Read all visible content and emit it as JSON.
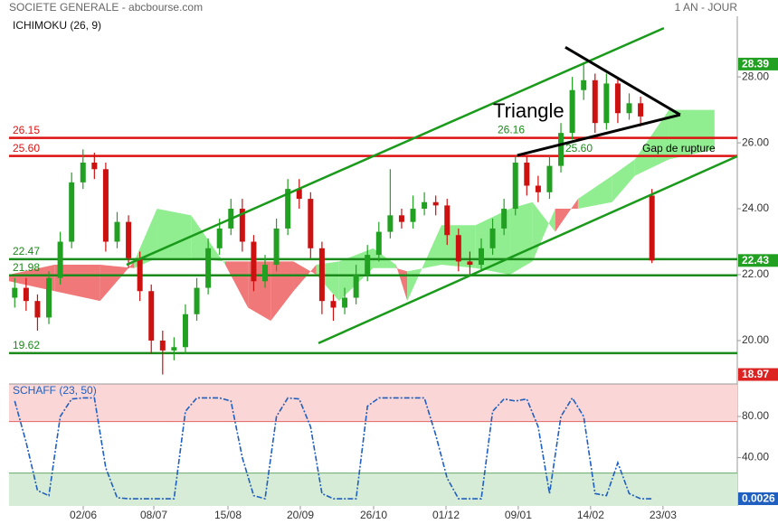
{
  "header": {
    "title": "SOCIETE GENERALE - abcbourse.com",
    "period": "1 AN - JOUR"
  },
  "chart_data": [
    {
      "type": "candlestick",
      "title": "ICHIMOKU (26, 9)",
      "xlim": [
        0,
        64
      ],
      "xticks": [
        {
          "value": 6.52,
          "label": "02/06"
        },
        {
          "value": 12.72,
          "label": "08/07"
        },
        {
          "value": 19.24,
          "label": "15/08"
        },
        {
          "value": 25.6,
          "label": "20/09"
        },
        {
          "value": 32.04,
          "label": "26/10"
        },
        {
          "value": 38.4,
          "label": "01/12"
        },
        {
          "value": 44.75,
          "label": "09/01"
        },
        {
          "value": 51.11,
          "label": "14/02"
        },
        {
          "value": 57.47,
          "label": "23/03"
        }
      ],
      "ylim": [
        18.82,
        29.84
      ],
      "yticks": [
        {
          "value": 20,
          "label": "20.00"
        },
        {
          "value": 22,
          "label": "22.00"
        },
        {
          "value": 24,
          "label": "24.00"
        },
        {
          "value": 26,
          "label": "26.00"
        },
        {
          "value": 28,
          "label": "28.00"
        }
      ],
      "up_color": "#22a022",
      "down_color": "#cc1111",
      "open": [
        21.3,
        21.6,
        21.2,
        20.7,
        21.9,
        23.0,
        24.8,
        25.4,
        25.2,
        23.0,
        23.6,
        22.5,
        21.5,
        20.0,
        19.7,
        19.8,
        20.8,
        21.6,
        22.8,
        23.4,
        24.0,
        23.0,
        21.8,
        22.3,
        23.4,
        24.6,
        24.3,
        22.8,
        21.2,
        21.0,
        21.3,
        22.0,
        22.6,
        23.3,
        23.8,
        23.6,
        24.0,
        24.2,
        24.1,
        23.2,
        22.4,
        22.3,
        22.8,
        23.4,
        24.0,
        25.4,
        24.7,
        24.5,
        25.3,
        26.3,
        27.6,
        27.9,
        26.6,
        27.8,
        26.9,
        27.2,
        24.4
      ],
      "high": [
        21.9,
        21.9,
        21.4,
        22.1,
        23.3,
        25.1,
        25.8,
        25.7,
        25.4,
        23.9,
        23.8,
        22.7,
        21.7,
        20.3,
        20.1,
        21.1,
        21.9,
        23.1,
        23.7,
        24.3,
        24.3,
        23.2,
        22.6,
        23.7,
        24.9,
        24.9,
        24.5,
        23.0,
        21.4,
        21.6,
        22.3,
        22.9,
        23.6,
        25.2,
        24.0,
        24.4,
        24.5,
        24.4,
        24.3,
        23.4,
        22.7,
        23.1,
        23.7,
        24.3,
        25.6,
        25.6,
        25.0,
        25.6,
        26.6,
        28.0,
        28.4,
        28.1,
        28.1,
        28.0,
        27.5,
        27.4,
        24.6
      ],
      "low": [
        21.0,
        20.9,
        20.3,
        20.5,
        21.7,
        22.8,
        24.6,
        24.9,
        22.7,
        22.8,
        22.2,
        21.2,
        19.6,
        18.97,
        19.4,
        19.6,
        20.6,
        21.4,
        22.6,
        23.2,
        22.7,
        21.5,
        21.6,
        22.1,
        23.2,
        24.0,
        22.5,
        20.8,
        20.6,
        20.8,
        21.1,
        21.8,
        22.4,
        23.1,
        23.4,
        23.4,
        23.8,
        23.8,
        22.9,
        22.1,
        22.0,
        22.1,
        22.6,
        23.2,
        23.8,
        24.4,
        24.2,
        24.3,
        25.1,
        26.1,
        27.3,
        26.3,
        26.4,
        26.6,
        26.7,
        26.5,
        22.35
      ],
      "close": [
        21.6,
        21.2,
        20.7,
        21.9,
        23.0,
        24.8,
        25.4,
        25.2,
        23.0,
        23.6,
        22.5,
        21.5,
        20.0,
        19.7,
        19.8,
        20.8,
        21.6,
        22.8,
        23.4,
        24.0,
        23.0,
        21.8,
        22.3,
        23.4,
        24.6,
        24.3,
        22.8,
        21.2,
        21.0,
        21.3,
        22.0,
        22.6,
        23.3,
        23.8,
        23.6,
        24.0,
        24.2,
        24.1,
        23.2,
        22.4,
        22.3,
        22.8,
        23.4,
        24.0,
        25.4,
        24.7,
        24.5,
        25.3,
        26.3,
        27.6,
        27.9,
        26.6,
        27.8,
        26.9,
        27.2,
        26.8,
        22.43
      ],
      "cloud": {
        "up_color": "#90ee90",
        "down_color": "#f07878",
        "x": [
          0,
          4,
          8,
          11,
          13,
          16,
          19,
          21,
          23,
          25,
          27,
          29,
          32,
          34,
          35,
          38,
          41,
          44,
          46,
          48,
          50,
          53,
          55,
          58,
          62
        ],
        "span_a": [
          21.8,
          21.5,
          21.2,
          22.4,
          24.0,
          23.8,
          22.3,
          21.0,
          20.6,
          21.5,
          22.3,
          22.4,
          22.8,
          22.3,
          21.2,
          23.5,
          23.5,
          24.0,
          24.2,
          23.3,
          24.3,
          25.0,
          25.5,
          27.0,
          27.0
        ],
        "span_b": [
          22.0,
          22.3,
          22.3,
          22.2,
          22.5,
          22.5,
          22.4,
          22.4,
          22.4,
          22.4,
          22.0,
          21.2,
          22.2,
          22.2,
          22.1,
          22.3,
          22.2,
          22.0,
          22.4,
          24.0,
          24.0,
          24.2,
          25.0,
          25.5,
          25.8
        ]
      },
      "levels": [
        26.15,
        {
          "value": 25.6,
          "label": "25.60"
        },
        22.47,
        21.98,
        19.62
      ],
      "level_colors": [
        "#dd1111",
        "#dd1111",
        "#1a8a1a",
        "#1a8a1a",
        "#1a8a1a"
      ],
      "trendlines": [
        {
          "color": "#1a9a1a",
          "points": [
            [
              10.33,
              22.3
            ],
            [
              57.55,
              29.48
            ]
          ]
        },
        {
          "color": "#1a9a1a",
          "points": [
            [
              27.19,
              19.92
            ],
            [
              63.99,
              25.59
            ]
          ]
        },
        {
          "color": "#000000",
          "points": [
            [
              48.89,
              28.9
            ],
            [
              58.98,
              26.85
            ]
          ]
        },
        {
          "color": "#000000",
          "points": [
            [
              44.67,
              25.62
            ],
            [
              58.98,
              26.85
            ]
          ]
        }
      ],
      "triangle_prices": [
        26.16,
        {
          "value": 25.6,
          "label": "25.60"
        }
      ],
      "annotations": [
        "Triangle",
        "Gap de rupture"
      ],
      "price_markers": [
        {
          "value": 28.39,
          "color": "#22a022"
        },
        {
          "value": 22.43,
          "color": "#22a022"
        },
        {
          "value": 18.97,
          "color": "#dd2222"
        }
      ]
    },
    {
      "type": "line",
      "title": "SCHAFF (23, 50)",
      "color": "#1f5fbf",
      "xlim": [
        0,
        64
      ],
      "ylim": [
        -7,
        111.6
      ],
      "yticks": [
        {
          "value": 40,
          "label": "40.00"
        },
        {
          "value": 80,
          "label": "80.00"
        }
      ],
      "overbought": 75,
      "oversold": 25,
      "values": [
        95,
        55,
        8,
        3,
        80,
        97,
        98,
        98,
        30,
        1,
        0,
        0,
        0,
        0,
        0,
        85,
        98,
        98,
        98,
        95,
        40,
        3,
        0,
        80,
        98,
        97,
        70,
        5,
        0,
        0,
        0,
        90,
        98,
        98,
        98,
        98,
        98,
        62,
        20,
        0,
        0,
        0,
        85,
        97,
        95,
        97,
        70,
        5,
        80,
        98,
        80,
        5,
        3,
        35,
        5,
        0,
        0.0026
      ]
    }
  ]
}
